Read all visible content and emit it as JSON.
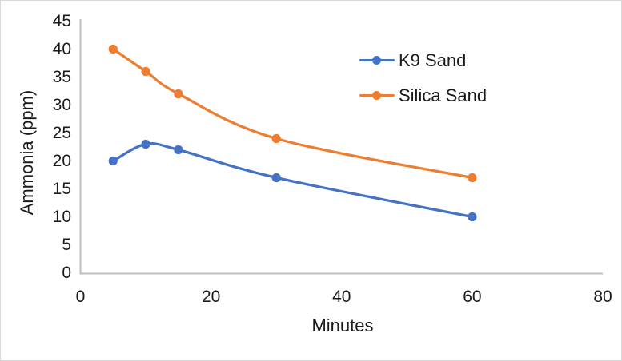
{
  "chart_data": {
    "type": "line",
    "title": "",
    "xlabel": "Minutes",
    "ylabel": "Ammonia (ppm)",
    "x": [
      5,
      10,
      15,
      30,
      60
    ],
    "series": [
      {
        "name": "K9 Sand",
        "color": "#4472C4",
        "values": [
          20,
          23,
          22,
          17,
          10
        ]
      },
      {
        "name": "Silica Sand",
        "color": "#ED7D31",
        "values": [
          40,
          36,
          32,
          24,
          17
        ]
      }
    ],
    "xlim": [
      0,
      80
    ],
    "ylim": [
      0,
      45
    ],
    "x_ticks": [
      0,
      20,
      40,
      60,
      80
    ],
    "y_ticks": [
      0,
      5,
      10,
      15,
      20,
      25,
      30,
      35,
      40,
      45
    ],
    "grid": false,
    "smooth_lines": true,
    "marker": "circle",
    "legend_position": "inside-top-right",
    "axis_line_color": "#BFBFBF",
    "text_color": "#1a1a1a",
    "background_color": "#FFFFFF",
    "border_color": "#D9D9D9"
  }
}
